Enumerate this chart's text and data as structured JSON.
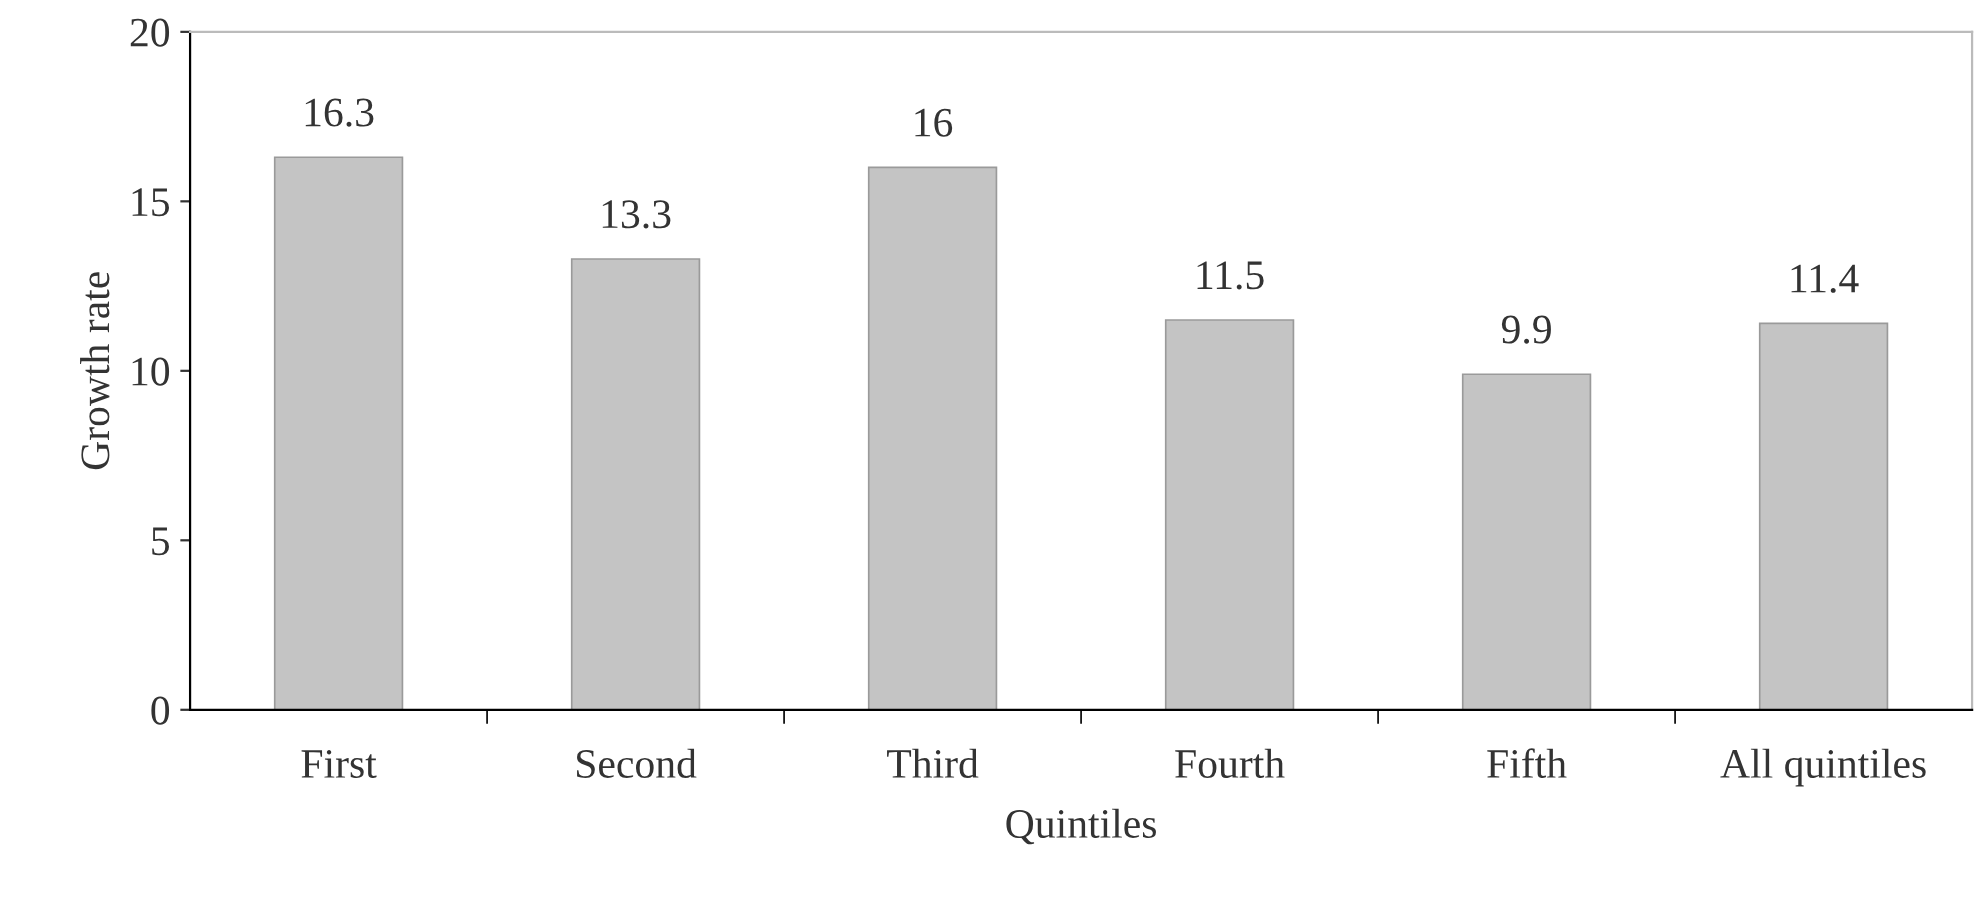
{
  "chart_data": {
    "type": "bar",
    "xlabel": "Quintiles",
    "ylabel": "Growth rate",
    "categories": [
      "First",
      "Second",
      "Third",
      "Fourth",
      "Fifth",
      "All quintiles"
    ],
    "values": [
      16.3,
      13.3,
      16,
      11.5,
      9.9,
      11.4
    ],
    "color": "#c4c4c4",
    "ylim": [
      0,
      20
    ],
    "yticks": [
      0,
      5,
      10,
      15,
      20
    ],
    "grid": false,
    "data_labels": true
  }
}
